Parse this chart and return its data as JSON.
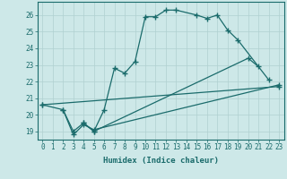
{
  "title": "",
  "xlabel": "Humidex (Indice chaleur)",
  "xlim": [
    -0.5,
    23.5
  ],
  "ylim": [
    18.5,
    26.8
  ],
  "yticks": [
    19,
    20,
    21,
    22,
    23,
    24,
    25,
    26
  ],
  "xticks": [
    0,
    1,
    2,
    3,
    4,
    5,
    6,
    7,
    8,
    9,
    10,
    11,
    12,
    13,
    14,
    15,
    16,
    17,
    18,
    19,
    20,
    21,
    22,
    23
  ],
  "bg_color": "#cde8e8",
  "grid_color": "#b0d0d0",
  "line_color": "#1a6b6b",
  "line1_x": [
    0,
    2,
    3,
    4,
    5,
    6,
    7,
    8,
    9,
    10,
    11,
    12,
    13,
    15,
    16,
    17,
    18,
    19,
    22
  ],
  "line1_y": [
    20.6,
    20.3,
    19.0,
    19.5,
    19.0,
    20.3,
    22.8,
    22.5,
    23.2,
    25.9,
    25.9,
    26.3,
    26.3,
    26.0,
    25.8,
    26.0,
    25.1,
    24.5,
    22.1
  ],
  "line2_x": [
    4,
    5,
    20,
    21
  ],
  "line2_y": [
    19.5,
    19.0,
    23.4,
    22.9
  ],
  "line3_x": [
    2,
    3,
    4,
    5,
    23
  ],
  "line3_y": [
    20.3,
    18.8,
    19.4,
    19.1,
    21.8
  ],
  "line4_x": [
    0,
    23
  ],
  "line4_y": [
    20.6,
    21.7
  ]
}
